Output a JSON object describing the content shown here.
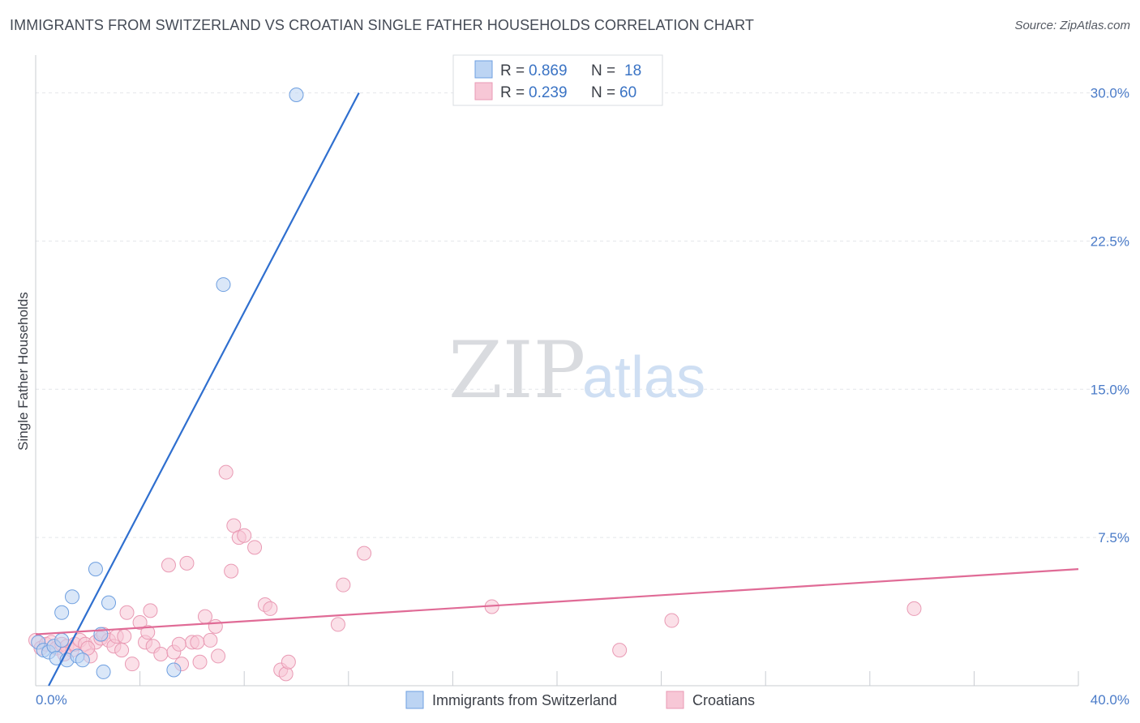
{
  "title": "IMMIGRANTS FROM SWITZERLAND VS CROATIAN SINGLE FATHER HOUSEHOLDS CORRELATION CHART",
  "source": "Source: ZipAtlas.com",
  "watermark": {
    "zip": "ZIP",
    "atlas": "atlas"
  },
  "colors": {
    "blue_fill": "#bcd4f3",
    "blue_stroke": "#6e9fe0",
    "blue_line": "#2f6fcf",
    "pink_fill": "#f7c7d6",
    "pink_stroke": "#e99ab4",
    "pink_line": "#e06b96",
    "tick_text": "#4a7bc8",
    "grid": "#e4e6ea"
  },
  "legend": {
    "rows": [
      {
        "r_label": "R = ",
        "r_value": "0.869",
        "n_label": "N = ",
        "n_value": "18"
      },
      {
        "r_label": "R = ",
        "r_value": "0.239",
        "n_label": "N = ",
        "n_value": "60"
      }
    ]
  },
  "bottom_legend": [
    "Immigrants from Switzerland",
    "Croatians"
  ],
  "chart_data": {
    "type": "scatter",
    "title": "IMMIGRANTS FROM SWITZERLAND VS CROATIAN SINGLE FATHER HOUSEHOLDS CORRELATION CHART",
    "xlabel": "",
    "ylabel": "Single Father Households",
    "xlim": [
      0,
      40
    ],
    "ylim": [
      0,
      31.5
    ],
    "x_tick_labels": [
      "0.0%",
      "40.0%"
    ],
    "y_ticks": [
      7.5,
      15.0,
      22.5,
      30.0
    ],
    "y_tick_labels": [
      "7.5%",
      "15.0%",
      "22.5%",
      "30.0%"
    ],
    "series": [
      {
        "name": "Immigrants from Switzerland",
        "color": "blue",
        "r": 0.869,
        "n": 18,
        "points": [
          [
            0.1,
            2.2
          ],
          [
            0.3,
            1.8
          ],
          [
            0.5,
            1.7
          ],
          [
            0.7,
            2.0
          ],
          [
            0.8,
            1.4
          ],
          [
            1.0,
            2.3
          ],
          [
            1.0,
            3.7
          ],
          [
            1.4,
            4.5
          ],
          [
            1.2,
            1.3
          ],
          [
            1.6,
            1.5
          ],
          [
            1.8,
            1.3
          ],
          [
            2.3,
            5.9
          ],
          [
            2.5,
            2.6
          ],
          [
            2.6,
            0.7
          ],
          [
            2.8,
            4.2
          ],
          [
            5.3,
            0.8
          ],
          [
            7.2,
            20.3
          ],
          [
            10.0,
            29.9
          ]
        ],
        "trend": {
          "x1": 0.5,
          "y1": 0.0,
          "x2": 12.4,
          "y2": 30.0
        }
      },
      {
        "name": "Croatians",
        "color": "pink",
        "r": 0.239,
        "n": 60,
        "points": [
          [
            0.0,
            2.3
          ],
          [
            0.2,
            1.9
          ],
          [
            0.4,
            2.1
          ],
          [
            0.6,
            2.2
          ],
          [
            0.8,
            1.9
          ],
          [
            1.0,
            2.1
          ],
          [
            1.2,
            2.0
          ],
          [
            1.4,
            1.8
          ],
          [
            1.5,
            2.1
          ],
          [
            1.7,
            2.3
          ],
          [
            1.9,
            2.1
          ],
          [
            2.1,
            1.5
          ],
          [
            2.3,
            2.2
          ],
          [
            2.5,
            2.4
          ],
          [
            2.6,
            2.6
          ],
          [
            2.8,
            2.3
          ],
          [
            3.0,
            2.0
          ],
          [
            3.1,
            2.5
          ],
          [
            3.3,
            1.8
          ],
          [
            3.5,
            3.7
          ],
          [
            3.7,
            1.1
          ],
          [
            4.0,
            3.2
          ],
          [
            4.2,
            2.2
          ],
          [
            4.4,
            3.8
          ],
          [
            4.5,
            2.0
          ],
          [
            4.8,
            1.6
          ],
          [
            5.1,
            6.1
          ],
          [
            5.3,
            1.7
          ],
          [
            5.6,
            1.1
          ],
          [
            5.8,
            6.2
          ],
          [
            6.0,
            2.2
          ],
          [
            6.3,
            1.2
          ],
          [
            6.5,
            3.5
          ],
          [
            6.7,
            2.3
          ],
          [
            6.9,
            3.0
          ],
          [
            7.0,
            1.5
          ],
          [
            7.3,
            10.8
          ],
          [
            7.6,
            8.1
          ],
          [
            7.8,
            7.5
          ],
          [
            7.5,
            5.8
          ],
          [
            8.0,
            7.6
          ],
          [
            8.4,
            7.0
          ],
          [
            8.8,
            4.1
          ],
          [
            9.0,
            3.9
          ],
          [
            9.4,
            0.8
          ],
          [
            9.6,
            0.6
          ],
          [
            9.7,
            1.2
          ],
          [
            11.6,
            3.1
          ],
          [
            11.8,
            5.1
          ],
          [
            12.6,
            6.7
          ],
          [
            17.5,
            4.0
          ],
          [
            22.4,
            1.8
          ],
          [
            24.4,
            3.3
          ],
          [
            33.7,
            3.9
          ],
          [
            1.1,
            1.6
          ],
          [
            2.0,
            1.9
          ],
          [
            3.4,
            2.5
          ],
          [
            4.3,
            2.7
          ],
          [
            5.5,
            2.1
          ],
          [
            6.2,
            2.2
          ]
        ],
        "trend": {
          "x1": 0.0,
          "y1": 2.6,
          "x2": 40.0,
          "y2": 5.9
        }
      }
    ]
  }
}
